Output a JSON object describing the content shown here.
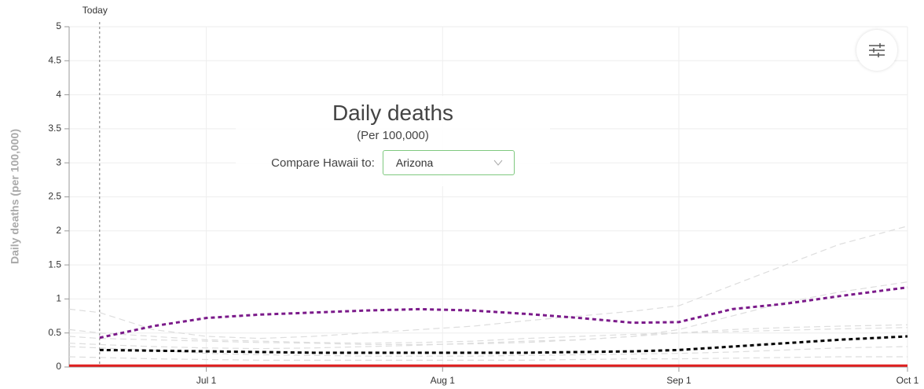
{
  "chart_data": {
    "type": "line",
    "title": "Daily deaths",
    "subtitle": "(Per 100,000)",
    "compare_label": "Compare Hawaii to:",
    "compare_selected": "Arizona",
    "ylabel": "Daily deaths (per 100,000)",
    "annotation": {
      "label": "Today",
      "x": "06-17"
    },
    "x": [
      "06-13",
      "06-17",
      "06-24",
      "07-01",
      "07-08",
      "07-15",
      "07-22",
      "07-29",
      "08-05",
      "08-12",
      "08-19",
      "08-26",
      "09-01",
      "09-08",
      "09-15",
      "09-22",
      "10-01"
    ],
    "xlim": [
      "06-13",
      "10-01"
    ],
    "xticks": [
      {
        "value": "07-01",
        "label": "Jul 1"
      },
      {
        "value": "08-01",
        "label": "Aug 1"
      },
      {
        "value": "09-01",
        "label": "Sep 1"
      },
      {
        "value": "10-01",
        "label": "Oct 1"
      }
    ],
    "ylim": [
      0,
      5
    ],
    "yticks": [
      0,
      0.5,
      1,
      1.5,
      2,
      2.5,
      3,
      3.5,
      4,
      4.5,
      5
    ],
    "grid": true,
    "series": [
      {
        "color": "#dddddd",
        "dashed": true,
        "values": [
          0.85,
          0.8,
          0.55,
          0.45,
          0.42,
          0.45,
          0.5,
          0.55,
          0.6,
          0.68,
          0.75,
          0.82,
          0.9,
          1.2,
          1.5,
          1.8,
          2.07
        ]
      },
      {
        "color": "#dddddd",
        "dashed": true,
        "values": [
          0.55,
          0.5,
          0.45,
          0.4,
          0.38,
          0.36,
          0.35,
          0.36,
          0.38,
          0.42,
          0.45,
          0.48,
          0.5,
          0.55,
          0.58,
          0.6,
          0.62
        ]
      },
      {
        "color": "#dddddd",
        "dashed": true,
        "values": [
          0.35,
          0.33,
          0.3,
          0.28,
          0.27,
          0.28,
          0.3,
          0.32,
          0.35,
          0.38,
          0.4,
          0.45,
          0.55,
          0.75,
          0.95,
          1.1,
          1.25
        ]
      },
      {
        "color": "#dddddd",
        "dashed": true,
        "values": [
          0.3,
          0.28,
          0.25,
          0.2,
          0.18,
          0.17,
          0.16,
          0.16,
          0.16,
          0.17,
          0.18,
          0.19,
          0.2,
          0.22,
          0.25,
          0.28,
          0.3
        ]
      },
      {
        "color": "#dddddd",
        "dashed": true,
        "values": [
          0.15,
          0.14,
          0.12,
          0.11,
          0.1,
          0.1,
          0.1,
          0.1,
          0.1,
          0.1,
          0.11,
          0.12,
          0.12,
          0.13,
          0.14,
          0.15,
          0.15
        ]
      },
      {
        "color": "#dddddd",
        "dashed": true,
        "values": [
          0.45,
          0.42,
          0.4,
          0.38,
          0.36,
          0.35,
          0.33,
          0.33,
          0.34,
          0.36,
          0.4,
          0.45,
          0.5,
          0.52,
          0.54,
          0.56,
          0.58
        ]
      },
      {
        "color": "#000000",
        "dashed": true,
        "values": [
          null,
          0.25,
          0.24,
          0.23,
          0.22,
          0.21,
          0.21,
          0.21,
          0.21,
          0.21,
          0.22,
          0.23,
          0.25,
          0.3,
          0.35,
          0.4,
          0.45
        ]
      },
      {
        "color": "#7b1a8a",
        "dashed": true,
        "values": [
          null,
          0.43,
          0.6,
          0.72,
          0.77,
          0.8,
          0.83,
          0.85,
          0.83,
          0.78,
          0.72,
          0.65,
          0.66,
          0.85,
          0.93,
          1.04,
          1.17
        ]
      },
      {
        "color": "#e02020",
        "dashed": false,
        "values": [
          0.02,
          0.02,
          0.02,
          0.02,
          0.02,
          0.02,
          0.02,
          0.02,
          0.02,
          0.02,
          0.02,
          0.02,
          0.02,
          0.02,
          0.02,
          0.02,
          0.02
        ]
      }
    ]
  }
}
